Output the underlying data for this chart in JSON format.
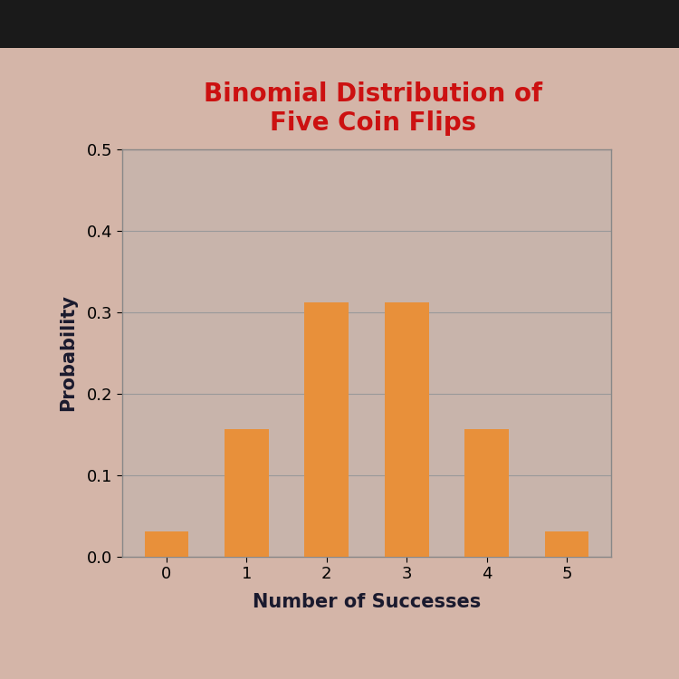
{
  "title": "Binomial Distribution of\nFive Coin Flips",
  "xlabel": "Number of Successes",
  "ylabel": "Probability",
  "categories": [
    0,
    1,
    2,
    3,
    4,
    5
  ],
  "values": [
    0.03125,
    0.15625,
    0.3125,
    0.3125,
    0.15625,
    0.03125
  ],
  "bar_color": "#E8903A",
  "bar_edgecolor": "none",
  "title_color": "#CC1111",
  "xlabel_color": "#1a1a2e",
  "ylabel_color": "#1a1a2e",
  "background_color": "#D4B5A8",
  "axes_facecolor": "#C8B4AB",
  "top_bar_color": "#1a1a1a",
  "ylim": [
    0,
    0.5
  ],
  "yticks": [
    0.0,
    0.1,
    0.2,
    0.3,
    0.4,
    0.5
  ],
  "title_fontsize": 20,
  "xlabel_fontsize": 15,
  "ylabel_fontsize": 15,
  "tick_fontsize": 13,
  "bar_width": 0.55
}
